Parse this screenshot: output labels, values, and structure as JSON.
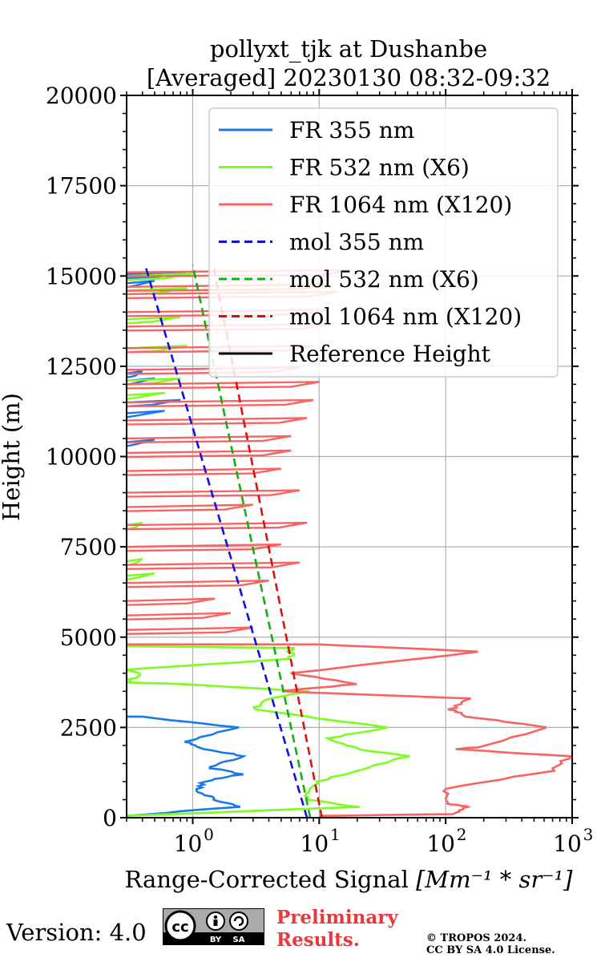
{
  "chart_data": {
    "type": "line",
    "title": "pollyxt_tjk at Dushanbe",
    "subtitle": "[Averaged] 20230130 08:32-09:32",
    "xlabel": "Range-Corrected Signal",
    "xlabel_unit": "[Mm⁻¹ * sr⁻¹]",
    "ylabel": "Height (m)",
    "xscale": "log",
    "xlim": [
      0.3,
      1000
    ],
    "ylim": [
      0,
      20000
    ],
    "grid": true,
    "legend_position": "top-right",
    "yticks": [
      0,
      2500,
      5000,
      7500,
      10000,
      12500,
      15000,
      17500,
      20000
    ],
    "yticklabels": [
      "0",
      "2500",
      "5000",
      "7500",
      "10000",
      "12500",
      "15000",
      "17500",
      "20000"
    ],
    "xticks": [
      1,
      10,
      100,
      1000
    ],
    "xticklabels_base": [
      "10",
      "10",
      "10",
      "10"
    ],
    "xticklabels_exp": [
      "0",
      "1",
      "2",
      "3"
    ],
    "series": [
      {
        "name": "FR 355 nm",
        "color": "#1a7be8",
        "dash": false,
        "points": [
          [
            0.3,
            50
          ],
          [
            2.3,
            300
          ],
          [
            1.5,
            500
          ],
          [
            1.1,
            750
          ],
          [
            1.2,
            1000
          ],
          [
            2.4,
            1200
          ],
          [
            1.3,
            1400
          ],
          [
            2.6,
            1700
          ],
          [
            1.2,
            1900
          ],
          [
            0.9,
            2100
          ],
          [
            2.2,
            2500
          ],
          [
            0.4,
            2800
          ],
          [
            0.3,
            2800
          ]
        ],
        "spikes": [
          [
            0.9,
            15050
          ],
          [
            0.5,
            14800
          ],
          [
            0.4,
            12300
          ],
          [
            0.5,
            12100
          ],
          [
            0.8,
            11500
          ],
          [
            0.6,
            11200
          ],
          [
            0.5,
            10400
          ]
        ]
      },
      {
        "name": "FR 532 nm (X6)",
        "color": "#7cfc1f",
        "dash": false,
        "points": [
          [
            0.3,
            50
          ],
          [
            20,
            300
          ],
          [
            8,
            500
          ],
          [
            8,
            700
          ],
          [
            10,
            1000
          ],
          [
            16,
            1200
          ],
          [
            50,
            1700
          ],
          [
            20,
            1900
          ],
          [
            12,
            2200
          ],
          [
            35,
            2500
          ],
          [
            3,
            3000
          ],
          [
            4,
            3300
          ],
          [
            8,
            3500
          ],
          [
            0.8,
            3700
          ],
          [
            0.3,
            3750
          ],
          [
            0.4,
            4000
          ],
          [
            0.3,
            4100
          ],
          [
            6,
            4400
          ],
          [
            6,
            4700
          ],
          [
            0.3,
            4750
          ]
        ],
        "spikes": [
          [
            0.5,
            6700
          ],
          [
            0.4,
            7100
          ],
          [
            0.4,
            8100
          ],
          [
            0.6,
            11700
          ],
          [
            0.8,
            12100
          ],
          [
            0.9,
            13000
          ],
          [
            0.8,
            13800
          ],
          [
            0.9,
            14600
          ],
          [
            1.0,
            15000
          ]
        ]
      },
      {
        "name": "FR 1064 nm (X120)",
        "color": "#f86464",
        "dash": false,
        "points": [
          [
            10,
            50
          ],
          [
            110,
            100
          ],
          [
            150,
            300
          ],
          [
            100,
            400
          ],
          [
            100,
            800
          ],
          [
            690,
            1300
          ],
          [
            950,
            1700
          ],
          [
            120,
            1900
          ],
          [
            180,
            1950
          ],
          [
            650,
            2500
          ],
          [
            150,
            2800
          ],
          [
            110,
            3000
          ],
          [
            150,
            3300
          ],
          [
            5,
            3500
          ],
          [
            20,
            3700
          ],
          [
            6,
            4000
          ],
          [
            190,
            4600
          ],
          [
            10,
            4800
          ],
          [
            0.3,
            4800
          ]
        ],
        "spikes": [
          [
            3,
            5200
          ],
          [
            2,
            5600
          ],
          [
            1.5,
            6000
          ],
          [
            4,
            6500
          ],
          [
            7,
            7000
          ],
          [
            5,
            7500
          ],
          [
            8,
            8100
          ],
          [
            3,
            8600
          ],
          [
            7,
            9000
          ],
          [
            5,
            9600
          ],
          [
            6,
            10100
          ],
          [
            6,
            10500
          ],
          [
            8,
            11000
          ],
          [
            9,
            11500
          ],
          [
            10,
            12000
          ],
          [
            7,
            12400
          ],
          [
            9,
            13000
          ],
          [
            12,
            13600
          ],
          [
            12,
            14000
          ],
          [
            14,
            14500
          ],
          [
            12,
            14700
          ],
          [
            18,
            15100
          ]
        ]
      },
      {
        "name": "mol 355 nm",
        "color": "#1010e6",
        "dash": true,
        "points": [
          [
            8,
            0
          ],
          [
            0.42,
            15300
          ]
        ]
      },
      {
        "name": "mol 532 nm (X6)",
        "color": "#10b010",
        "dash": true,
        "points": [
          [
            8.5,
            0
          ],
          [
            1.0,
            15300
          ]
        ]
      },
      {
        "name": "mol 1064 nm (X120)",
        "color": "#dd1010",
        "dash": true,
        "points": [
          [
            10.5,
            0
          ],
          [
            1.45,
            15300
          ]
        ]
      },
      {
        "name": "Reference Height",
        "color": "#000000",
        "dash": false,
        "points": []
      }
    ]
  },
  "footer": {
    "version": "Version: 4.0",
    "prelim_line1": "Preliminary",
    "prelim_line2": "Results.",
    "copyright_line1": "© TROPOS 2024.",
    "copyright_line2": "CC BY SA 4.0 License.",
    "cc_badge": {
      "left": "cc",
      "by": "BY",
      "sa": "SA"
    }
  }
}
